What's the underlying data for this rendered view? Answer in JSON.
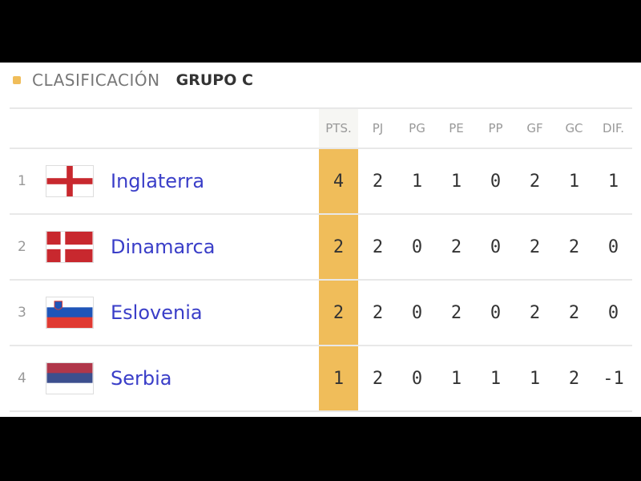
{
  "header": {
    "label": "CLASIFICACIÓN",
    "group": "GRUPO C",
    "accent": "#f0bd5a"
  },
  "columns": [
    "PTS.",
    "PJ",
    "PG",
    "PE",
    "PP",
    "GF",
    "GC",
    "DIF."
  ],
  "rows": [
    {
      "pos": "1",
      "team": "Inglaterra",
      "flag": "england-flag",
      "stats": [
        "4",
        "2",
        "1",
        "1",
        "0",
        "2",
        "1",
        "1"
      ]
    },
    {
      "pos": "2",
      "team": "Dinamarca",
      "flag": "denmark-flag",
      "stats": [
        "2",
        "2",
        "0",
        "2",
        "0",
        "2",
        "2",
        "0"
      ]
    },
    {
      "pos": "3",
      "team": "Eslovenia",
      "flag": "slovenia-flag",
      "stats": [
        "2",
        "2",
        "0",
        "2",
        "0",
        "2",
        "2",
        "0"
      ]
    },
    {
      "pos": "4",
      "team": "Serbia",
      "flag": "serbia-flag",
      "stats": [
        "1",
        "2",
        "0",
        "1",
        "1",
        "1",
        "2",
        "-1"
      ]
    }
  ]
}
